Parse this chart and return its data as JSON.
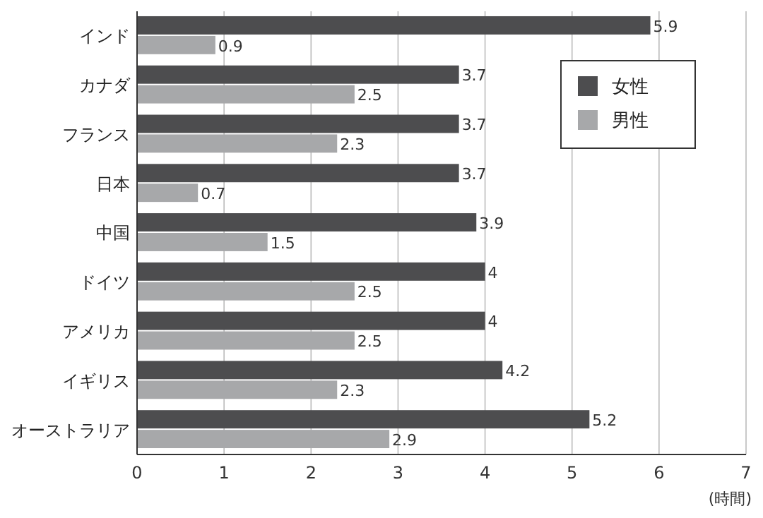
{
  "chart_data": {
    "type": "bar",
    "orientation": "horizontal",
    "categories": [
      "インド",
      "カナダ",
      "フランス",
      "日本",
      "中国",
      "ドイツ",
      "アメリカ",
      "イギリス",
      "オーストラリア"
    ],
    "series": [
      {
        "name": "女性",
        "color": "#4d4d4f",
        "values": [
          5.9,
          3.7,
          3.7,
          3.7,
          3.9,
          4,
          4,
          4.2,
          5.2
        ]
      },
      {
        "name": "男性",
        "color": "#a7a8aa",
        "values": [
          0.9,
          2.5,
          2.3,
          0.7,
          1.5,
          2.5,
          2.5,
          2.3,
          2.9
        ]
      }
    ],
    "xlim": [
      0,
      7
    ],
    "xticks": [
      0,
      1,
      2,
      3,
      4,
      5,
      6,
      7
    ],
    "xlabel": "(時間)",
    "grid": "x",
    "legend": "top right",
    "data_labels": true
  }
}
